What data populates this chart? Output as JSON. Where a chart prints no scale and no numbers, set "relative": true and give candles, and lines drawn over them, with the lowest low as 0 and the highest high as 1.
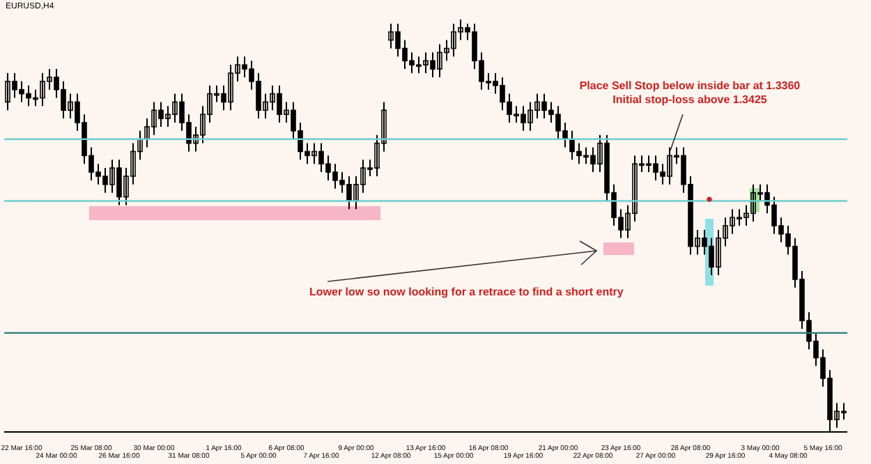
{
  "chart_data": {
    "type": "candlestick",
    "title": "EURUSD,H4",
    "relative": true,
    "color": "#000000",
    "tick_labels": "x",
    "categories": [
      null,
      null,
      "22 Mar 16:00",
      null,
      null,
      null,
      null,
      "24 Mar 00:00",
      null,
      null,
      null,
      null,
      "25 Mar 08:00",
      null,
      null,
      null,
      "26 Mar 16:00",
      null,
      null,
      null,
      null,
      "30 Mar 00:00",
      null,
      null,
      null,
      null,
      "31 Mar 08:00",
      null,
      null,
      null,
      null,
      "1 Apr 16:00",
      null,
      null,
      null,
      null,
      "5 Apr 00:00",
      null,
      null,
      null,
      "6 Apr 08:00",
      null,
      null,
      null,
      null,
      "7 Apr 16:00",
      null,
      null,
      null,
      null,
      "9 Apr 00:00",
      null,
      null,
      null,
      null,
      "12 Apr 08:00",
      null,
      null,
      null,
      null,
      "13 Apr 16:00",
      null,
      null,
      null,
      "15 Apr 00:00",
      null,
      null,
      null,
      null,
      "16 Apr 08:00",
      null,
      null,
      null,
      null,
      "19 Apr 16:00",
      null,
      null,
      null,
      null,
      "21 Apr 00:00",
      null,
      null,
      null,
      null,
      "22 Apr 08:00",
      null,
      null,
      null,
      "23 Apr 16:00",
      null,
      null,
      null,
      null,
      "27 Apr 00:00",
      null,
      null,
      null,
      null,
      "28 Apr 08:00",
      null,
      null,
      null,
      null,
      "29 Apr 16:00",
      null,
      null,
      null,
      null,
      "3 May 00:00",
      null,
      null,
      null,
      "4 May 08:00",
      null,
      null,
      null,
      null,
      "5 May 16:00",
      null,
      null,
      null
    ],
    "ohlc": [
      [
        0.8,
        0.87,
        0.78,
        0.85
      ],
      [
        0.85,
        0.87,
        0.81,
        0.83
      ],
      [
        0.83,
        0.85,
        0.8,
        0.82
      ],
      [
        0.82,
        0.84,
        0.79,
        0.81
      ],
      [
        0.81,
        0.83,
        0.79,
        0.81
      ],
      [
        0.81,
        0.87,
        0.79,
        0.85
      ],
      [
        0.85,
        0.88,
        0.83,
        0.86
      ],
      [
        0.86,
        0.88,
        0.81,
        0.83
      ],
      [
        0.83,
        0.85,
        0.76,
        0.78
      ],
      [
        0.78,
        0.82,
        0.76,
        0.8
      ],
      [
        0.8,
        0.82,
        0.73,
        0.75
      ],
      [
        0.75,
        0.77,
        0.65,
        0.67
      ],
      [
        0.67,
        0.69,
        0.61,
        0.63
      ],
      [
        0.63,
        0.65,
        0.6,
        0.62
      ],
      [
        0.62,
        0.64,
        0.58,
        0.6
      ],
      [
        0.6,
        0.66,
        0.58,
        0.64
      ],
      [
        0.64,
        0.66,
        0.55,
        0.57
      ],
      [
        0.57,
        0.64,
        0.55,
        0.62
      ],
      [
        0.62,
        0.7,
        0.6,
        0.68
      ],
      [
        0.68,
        0.73,
        0.66,
        0.71
      ],
      [
        0.71,
        0.76,
        0.69,
        0.74
      ],
      [
        0.74,
        0.8,
        0.72,
        0.78
      ],
      [
        0.78,
        0.8,
        0.74,
        0.76
      ],
      [
        0.76,
        0.79,
        0.74,
        0.77
      ],
      [
        0.77,
        0.82,
        0.75,
        0.8
      ],
      [
        0.8,
        0.82,
        0.73,
        0.75
      ],
      [
        0.75,
        0.77,
        0.68,
        0.7
      ],
      [
        0.7,
        0.74,
        0.68,
        0.72
      ],
      [
        0.72,
        0.79,
        0.7,
        0.77
      ],
      [
        0.77,
        0.84,
        0.75,
        0.82
      ],
      [
        0.82,
        0.84,
        0.8,
        0.82
      ],
      [
        0.82,
        0.84,
        0.78,
        0.8
      ],
      [
        0.8,
        0.89,
        0.78,
        0.87
      ],
      [
        0.87,
        0.91,
        0.85,
        0.89
      ],
      [
        0.89,
        0.91,
        0.86,
        0.88
      ],
      [
        0.88,
        0.9,
        0.83,
        0.85
      ],
      [
        0.85,
        0.87,
        0.76,
        0.78
      ],
      [
        0.78,
        0.82,
        0.76,
        0.8
      ],
      [
        0.8,
        0.84,
        0.78,
        0.82
      ],
      [
        0.82,
        0.84,
        0.75,
        0.77
      ],
      [
        0.77,
        0.8,
        0.75,
        0.78
      ],
      [
        0.78,
        0.8,
        0.71,
        0.73
      ],
      [
        0.73,
        0.75,
        0.66,
        0.68
      ],
      [
        0.68,
        0.7,
        0.65,
        0.67
      ],
      [
        0.67,
        0.7,
        0.65,
        0.68
      ],
      [
        0.68,
        0.7,
        0.63,
        0.65
      ],
      [
        0.65,
        0.67,
        0.61,
        0.63
      ],
      [
        0.63,
        0.65,
        0.59,
        0.61
      ],
      [
        0.61,
        0.63,
        0.58,
        0.6
      ],
      [
        0.6,
        0.62,
        0.54,
        0.56
      ],
      [
        0.56,
        0.62,
        0.54,
        0.6
      ],
      [
        0.6,
        0.66,
        0.58,
        0.64
      ],
      [
        0.64,
        0.66,
        0.62,
        0.64
      ],
      [
        0.64,
        0.72,
        0.62,
        0.7
      ],
      [
        0.7,
        0.8,
        0.68,
        0.78
      ],
      [
        0.95,
        0.99,
        0.93,
        0.97
      ],
      [
        0.97,
        0.99,
        0.91,
        0.93
      ],
      [
        0.93,
        0.95,
        0.88,
        0.9
      ],
      [
        0.9,
        0.92,
        0.87,
        0.89
      ],
      [
        0.89,
        0.91,
        0.87,
        0.89
      ],
      [
        0.89,
        0.92,
        0.87,
        0.9
      ],
      [
        0.9,
        0.92,
        0.86,
        0.88
      ],
      [
        0.88,
        0.94,
        0.86,
        0.92
      ],
      [
        0.92,
        0.95,
        0.9,
        0.93
      ],
      [
        0.93,
        0.99,
        0.91,
        0.97
      ],
      [
        0.97,
        1.0,
        0.95,
        0.98
      ],
      [
        0.98,
        0.99,
        0.95,
        0.97
      ],
      [
        0.97,
        0.99,
        0.88,
        0.9
      ],
      [
        0.9,
        0.92,
        0.83,
        0.85
      ],
      [
        0.85,
        0.87,
        0.83,
        0.85
      ],
      [
        0.85,
        0.87,
        0.82,
        0.84
      ],
      [
        0.84,
        0.86,
        0.78,
        0.8
      ],
      [
        0.8,
        0.82,
        0.75,
        0.77
      ],
      [
        0.77,
        0.79,
        0.75,
        0.77
      ],
      [
        0.77,
        0.79,
        0.73,
        0.75
      ],
      [
        0.75,
        0.8,
        0.73,
        0.78
      ],
      [
        0.78,
        0.82,
        0.76,
        0.8
      ],
      [
        0.8,
        0.82,
        0.76,
        0.78
      ],
      [
        0.78,
        0.8,
        0.75,
        0.77
      ],
      [
        0.77,
        0.79,
        0.71,
        0.73
      ],
      [
        0.73,
        0.75,
        0.69,
        0.71
      ],
      [
        0.71,
        0.73,
        0.66,
        0.68
      ],
      [
        0.68,
        0.7,
        0.65,
        0.67
      ],
      [
        0.67,
        0.69,
        0.65,
        0.67
      ],
      [
        0.67,
        0.69,
        0.63,
        0.65
      ],
      [
        0.65,
        0.72,
        0.63,
        0.7
      ],
      [
        0.7,
        0.72,
        0.56,
        0.58
      ],
      [
        0.58,
        0.6,
        0.5,
        0.52
      ],
      [
        0.52,
        0.54,
        0.47,
        0.49
      ],
      [
        0.49,
        0.55,
        0.47,
        0.53
      ],
      [
        0.53,
        0.67,
        0.51,
        0.65
      ],
      [
        0.65,
        0.67,
        0.63,
        0.65
      ],
      [
        0.65,
        0.67,
        0.63,
        0.65
      ],
      [
        0.65,
        0.67,
        0.61,
        0.63
      ],
      [
        0.63,
        0.65,
        0.6,
        0.62
      ],
      [
        0.62,
        0.69,
        0.6,
        0.67
      ],
      [
        0.67,
        0.69,
        0.65,
        0.67
      ],
      [
        0.67,
        0.69,
        0.58,
        0.6
      ],
      [
        0.6,
        0.62,
        0.43,
        0.45
      ],
      [
        0.45,
        0.49,
        0.43,
        0.47
      ],
      [
        0.47,
        0.49,
        0.43,
        0.45
      ],
      [
        0.45,
        0.47,
        0.38,
        0.4
      ],
      [
        0.4,
        0.49,
        0.38,
        0.47
      ],
      [
        0.47,
        0.52,
        0.45,
        0.5
      ],
      [
        0.5,
        0.54,
        0.48,
        0.52
      ],
      [
        0.52,
        0.54,
        0.5,
        0.52
      ],
      [
        0.52,
        0.55,
        0.5,
        0.53
      ],
      [
        0.53,
        0.6,
        0.51,
        0.58
      ],
      [
        0.58,
        0.6,
        0.56,
        0.58
      ],
      [
        0.58,
        0.6,
        0.53,
        0.55
      ],
      [
        0.55,
        0.57,
        0.48,
        0.5
      ],
      [
        0.5,
        0.52,
        0.46,
        0.48
      ],
      [
        0.48,
        0.5,
        0.43,
        0.45
      ],
      [
        0.45,
        0.47,
        0.35,
        0.37
      ],
      [
        0.37,
        0.39,
        0.25,
        0.27
      ],
      [
        0.27,
        0.29,
        0.2,
        0.22
      ],
      [
        0.22,
        0.24,
        0.16,
        0.18
      ],
      [
        0.18,
        0.2,
        0.11,
        0.13
      ],
      [
        0.13,
        0.15,
        0.0,
        0.03
      ],
      [
        0.03,
        0.07,
        0.01,
        0.05
      ],
      [
        0.05,
        0.07,
        0.03,
        0.05
      ]
    ],
    "ref_lines": [
      {
        "axis": "y",
        "value": 0.71,
        "color": "#6fcfd0"
      },
      {
        "axis": "y",
        "value": 0.56,
        "color": "#6fcfd0"
      },
      {
        "axis": "y",
        "value": 0.24,
        "color": "#2a7b78"
      }
    ],
    "annotations": [
      "Place Sell Stop below inside bar at 1.3360\nInitial stop-loss above 1.3425",
      "Lower low so now looking for a retrace to find a short entry"
    ]
  }
}
